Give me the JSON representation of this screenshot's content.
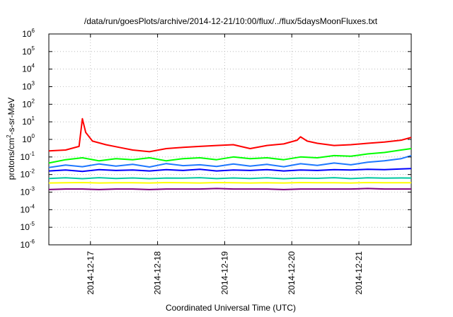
{
  "chart_data": {
    "type": "line",
    "title": "/data/run/goesPlots/archive/2014-12-21/10:00/flux/../flux/5daysMoonFluxes.txt",
    "xlabel": "Coordinated Universal Time (UTC)",
    "ylabel": {
      "pre": "protons/cm",
      "sup": "2",
      "post": "-s-sr-MeV"
    },
    "yscale": "log",
    "ylim": [
      1e-06,
      1000000.0
    ],
    "xlim": [
      0,
      5.4
    ],
    "grid": true,
    "legend": "none",
    "x_ticks": [
      {
        "x": 0.62,
        "label": "2014-12-17"
      },
      {
        "x": 1.62,
        "label": "2014-12-18"
      },
      {
        "x": 2.62,
        "label": "2014-12-19"
      },
      {
        "x": 3.62,
        "label": "2014-12-20"
      },
      {
        "x": 4.62,
        "label": "2014-12-21"
      }
    ],
    "y_ticks": [
      {
        "value": 1e-06,
        "base": "10",
        "exp": "-6"
      },
      {
        "value": 1e-05,
        "base": "10",
        "exp": "-5"
      },
      {
        "value": 0.0001,
        "base": "10",
        "exp": "-4"
      },
      {
        "value": 0.001,
        "base": "10",
        "exp": "-3"
      },
      {
        "value": 0.01,
        "base": "10",
        "exp": "-2"
      },
      {
        "value": 0.1,
        "base": "10",
        "exp": "-1"
      },
      {
        "value": 1,
        "base": "10",
        "exp": "0"
      },
      {
        "value": 10,
        "base": "10",
        "exp": "1"
      },
      {
        "value": 100,
        "base": "10",
        "exp": "2"
      },
      {
        "value": 1000,
        "base": "10",
        "exp": "3"
      },
      {
        "value": 10000,
        "base": "10",
        "exp": "4"
      },
      {
        "value": 100000,
        "base": "10",
        "exp": "5"
      },
      {
        "value": 1000000,
        "base": "10",
        "exp": "6"
      }
    ],
    "series": [
      {
        "color": "#800080",
        "x": [
          0.0,
          0.25,
          0.5,
          0.75,
          1.0,
          1.25,
          1.5,
          1.75,
          2.0,
          2.25,
          2.5,
          2.75,
          3.0,
          3.25,
          3.5,
          3.75,
          4.0,
          4.25,
          4.5,
          4.75,
          5.0,
          5.25,
          5.4
        ],
        "values": [
          0.0014,
          0.0015,
          0.0015,
          0.0014,
          0.0015,
          0.0015,
          0.0014,
          0.0015,
          0.0015,
          0.0015,
          0.0016,
          0.0015,
          0.0015,
          0.0015,
          0.0014,
          0.0015,
          0.0015,
          0.0015,
          0.0015,
          0.0016,
          0.0015,
          0.0015,
          0.0015
        ]
      },
      {
        "color": "#ffff00",
        "x": [
          0.0,
          0.25,
          0.5,
          0.75,
          1.0,
          1.25,
          1.5,
          1.75,
          2.0,
          2.25,
          2.5,
          2.75,
          3.0,
          3.25,
          3.5,
          3.75,
          4.0,
          4.25,
          4.5,
          4.75,
          5.0,
          5.25,
          5.4
        ],
        "values": [
          0.0033,
          0.0034,
          0.0035,
          0.0033,
          0.0034,
          0.0034,
          0.0033,
          0.0035,
          0.0034,
          0.0033,
          0.0035,
          0.0034,
          0.0033,
          0.0034,
          0.0033,
          0.0035,
          0.0034,
          0.0034,
          0.0033,
          0.0035,
          0.0034,
          0.0034,
          0.0034
        ]
      },
      {
        "color": "#00c8a0",
        "x": [
          0.0,
          0.25,
          0.5,
          0.75,
          1.0,
          1.25,
          1.5,
          1.75,
          2.0,
          2.25,
          2.5,
          2.75,
          3.0,
          3.25,
          3.5,
          3.75,
          4.0,
          4.25,
          4.5,
          4.75,
          5.0,
          5.25,
          5.4
        ],
        "values": [
          0.006,
          0.0065,
          0.0058,
          0.0066,
          0.006,
          0.0064,
          0.0058,
          0.0063,
          0.0062,
          0.0066,
          0.0059,
          0.0064,
          0.006,
          0.0065,
          0.0058,
          0.0063,
          0.0061,
          0.0066,
          0.0059,
          0.0065,
          0.0062,
          0.0064,
          0.0063
        ]
      },
      {
        "color": "#0000ff",
        "x": [
          0.0,
          0.25,
          0.5,
          0.75,
          1.0,
          1.25,
          1.5,
          1.75,
          2.0,
          2.25,
          2.5,
          2.75,
          3.0,
          3.25,
          3.5,
          3.75,
          4.0,
          4.25,
          4.5,
          4.75,
          5.0,
          5.25,
          5.4
        ],
        "values": [
          0.016,
          0.018,
          0.015,
          0.019,
          0.017,
          0.018,
          0.016,
          0.019,
          0.017,
          0.02,
          0.016,
          0.018,
          0.017,
          0.019,
          0.016,
          0.018,
          0.017,
          0.019,
          0.018,
          0.02,
          0.019,
          0.021,
          0.022
        ]
      },
      {
        "color": "#1e78ff",
        "x": [
          0.0,
          0.25,
          0.5,
          0.75,
          1.0,
          1.25,
          1.5,
          1.75,
          2.0,
          2.25,
          2.5,
          2.75,
          3.0,
          3.25,
          3.5,
          3.75,
          4.0,
          4.25,
          4.5,
          4.75,
          5.0,
          5.25,
          5.4
        ],
        "values": [
          0.025,
          0.035,
          0.028,
          0.04,
          0.03,
          0.038,
          0.027,
          0.042,
          0.032,
          0.036,
          0.029,
          0.04,
          0.03,
          0.038,
          0.028,
          0.041,
          0.033,
          0.045,
          0.036,
          0.05,
          0.06,
          0.08,
          0.12
        ]
      },
      {
        "color": "#00ff00",
        "x": [
          0.0,
          0.25,
          0.5,
          0.75,
          1.0,
          1.25,
          1.5,
          1.75,
          2.0,
          2.25,
          2.5,
          2.75,
          3.0,
          3.25,
          3.5,
          3.75,
          4.0,
          4.25,
          4.5,
          4.75,
          5.0,
          5.25,
          5.4
        ],
        "values": [
          0.045,
          0.07,
          0.09,
          0.06,
          0.08,
          0.07,
          0.09,
          0.06,
          0.08,
          0.09,
          0.07,
          0.1,
          0.08,
          0.09,
          0.07,
          0.1,
          0.09,
          0.12,
          0.11,
          0.15,
          0.18,
          0.25,
          0.3
        ]
      },
      {
        "color": "#ff0000",
        "x": [
          0.0,
          0.25,
          0.45,
          0.5,
          0.55,
          0.65,
          0.85,
          1.05,
          1.25,
          1.5,
          1.75,
          2.0,
          2.25,
          2.5,
          2.75,
          3.0,
          3.25,
          3.5,
          3.7,
          3.75,
          3.85,
          4.0,
          4.25,
          4.5,
          4.75,
          5.0,
          5.25,
          5.4
        ],
        "values": [
          0.22,
          0.25,
          0.4,
          15.0,
          2.5,
          0.8,
          0.5,
          0.35,
          0.25,
          0.2,
          0.3,
          0.35,
          0.4,
          0.45,
          0.5,
          0.3,
          0.45,
          0.55,
          0.9,
          1.4,
          0.8,
          0.6,
          0.45,
          0.5,
          0.6,
          0.7,
          0.9,
          1.3
        ]
      }
    ]
  }
}
